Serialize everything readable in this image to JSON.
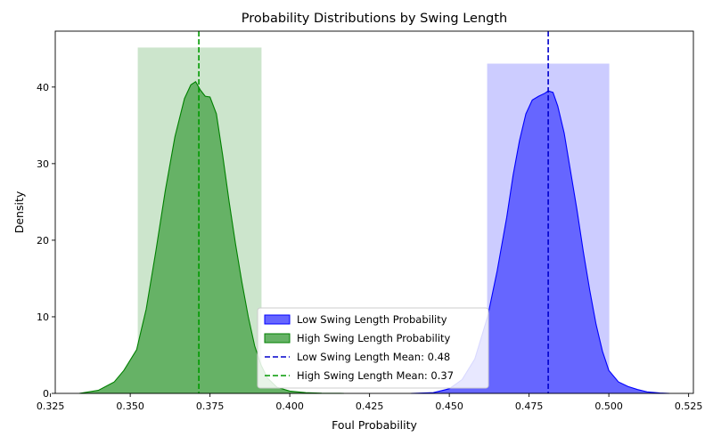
{
  "chart_data": {
    "type": "area",
    "title": "Probability Distributions by Swing Length",
    "xlabel": "Foul Probability",
    "ylabel": "Density",
    "xlim": [
      0.3265,
      0.5265
    ],
    "ylim": [
      0,
      47.3
    ],
    "x_ticks": [
      "0.325",
      "0.350",
      "0.375",
      "0.400",
      "0.425",
      "0.450",
      "0.475",
      "0.500",
      "0.525"
    ],
    "y_ticks": [
      "0",
      "10",
      "20",
      "30",
      "40"
    ],
    "x_tick_values": [
      0.325,
      0.35,
      0.375,
      0.4,
      0.425,
      0.45,
      0.475,
      0.5,
      0.525
    ],
    "y_tick_values": [
      0,
      10,
      20,
      30,
      40
    ],
    "grid": false,
    "legend_position": "lower-center",
    "series": [
      {
        "name": "Low Swing Length Probability",
        "color": "#0000ff",
        "fill_color": "#6666ff",
        "x": [
          0.438,
          0.445,
          0.45,
          0.454,
          0.458,
          0.462,
          0.465,
          0.468,
          0.47,
          0.472,
          0.474,
          0.476,
          0.478,
          0.48,
          0.481,
          0.4825,
          0.484,
          0.486,
          0.488,
          0.49,
          0.492,
          0.494,
          0.496,
          0.498,
          0.5,
          0.503,
          0.506,
          0.509,
          0.512,
          0.516,
          0.519
        ],
        "y": [
          0,
          0.1,
          0.6,
          1.8,
          4.5,
          10,
          16,
          23,
          28.5,
          33,
          36.5,
          38.3,
          38.8,
          39.2,
          39.5,
          39.3,
          37.5,
          34,
          29,
          24,
          18.5,
          13.5,
          9,
          5.5,
          3,
          1.5,
          0.9,
          0.5,
          0.2,
          0.05,
          0
        ]
      },
      {
        "name": "High Swing Length Probability",
        "color": "#008000",
        "fill_color": "#66b266",
        "x": [
          0.334,
          0.34,
          0.345,
          0.348,
          0.352,
          0.355,
          0.358,
          0.361,
          0.364,
          0.367,
          0.369,
          0.3705,
          0.372,
          0.3735,
          0.375,
          0.377,
          0.379,
          0.381,
          0.383,
          0.385,
          0.387,
          0.389,
          0.391,
          0.393,
          0.396,
          0.4,
          0.405,
          0.41,
          0.417
        ],
        "y": [
          0,
          0.4,
          1.5,
          3,
          5.7,
          11,
          18.5,
          26.5,
          33.5,
          38.5,
          40.3,
          40.7,
          39.6,
          38.8,
          38.7,
          36.5,
          31,
          25,
          19.5,
          14.5,
          10,
          6.2,
          3.7,
          2,
          0.8,
          0.3,
          0.1,
          0.03,
          0
        ]
      }
    ],
    "intervals": [
      {
        "series": "Low Swing Length Probability",
        "x_start": 0.462,
        "x_end": 0.5,
        "height": 43.0,
        "color": "#ccccff"
      },
      {
        "series": "High Swing Length Probability",
        "x_start": 0.3525,
        "x_end": 0.391,
        "height": 45.1,
        "color": "#cce5cc"
      }
    ],
    "mean_lines": [
      {
        "label": "Low Swing Length Mean: 0.48",
        "x": 0.481,
        "color": "#0000cc"
      },
      {
        "label": "High Swing Length Mean: 0.37",
        "x": 0.3715,
        "color": "#009900"
      }
    ]
  }
}
